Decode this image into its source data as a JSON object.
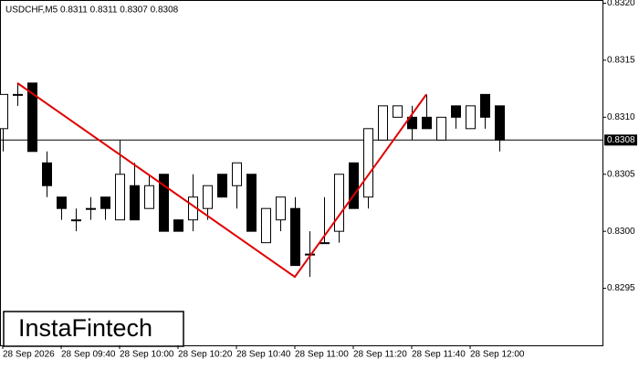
{
  "chart_data": {
    "type": "candlestick",
    "subtitle": "USDCHF,M5  0.8311 0.8311 0.8307 0.8308",
    "watermark": "InstaFintech",
    "categories": [
      "28 Sep 2026",
      null,
      null,
      null,
      "28 Sep 09:40",
      null,
      null,
      null,
      "28 Sep 10:00",
      null,
      null,
      null,
      "28 Sep 10:20",
      null,
      null,
      null,
      "28 Sep 10:40",
      null,
      null,
      null,
      "28 Sep 11:00",
      null,
      null,
      null,
      "28 Sep 11:20",
      null,
      null,
      null,
      "28 Sep 11:40",
      null,
      null,
      null,
      "28 Sep 12:00",
      null,
      null
    ],
    "open": [
      0.8309,
      0.8312,
      0.8313,
      0.8306,
      0.8303,
      0.8301,
      0.8302,
      0.8303,
      0.8301,
      0.8304,
      0.8302,
      0.8305,
      0.8301,
      0.8301,
      0.8302,
      0.8305,
      0.8304,
      0.8305,
      0.8299,
      0.8301,
      0.8302,
      0.8298,
      0.8299,
      0.83,
      0.8306,
      0.8303,
      0.8308,
      0.831,
      0.831,
      0.831,
      0.8308,
      0.8311,
      0.8309,
      0.8312,
      0.8311
    ],
    "high": [
      0.8312,
      0.8313,
      0.8313,
      0.8307,
      0.8303,
      0.8302,
      0.8303,
      0.8303,
      0.8308,
      0.8306,
      0.8305,
      0.8305,
      0.8301,
      0.8305,
      0.8304,
      0.8305,
      0.8306,
      0.8305,
      0.8302,
      0.8303,
      0.8303,
      0.83,
      0.8303,
      0.8305,
      0.8306,
      0.8309,
      0.8311,
      0.8311,
      0.8311,
      0.8312,
      0.831,
      0.8311,
      0.8311,
      0.8312,
      0.8311
    ],
    "low": [
      0.8307,
      0.8311,
      0.8307,
      0.8303,
      0.8301,
      0.83,
      0.8301,
      0.8301,
      0.8301,
      0.8301,
      0.8302,
      0.83,
      0.83,
      0.83,
      0.8301,
      0.8303,
      0.8302,
      0.83,
      0.8299,
      0.83,
      0.8297,
      0.8296,
      0.8299,
      0.8299,
      0.8302,
      0.8302,
      0.8308,
      0.831,
      0.8308,
      0.8309,
      0.8308,
      0.8309,
      0.8309,
      0.8309,
      0.8307
    ],
    "close": [
      0.8312,
      0.8312,
      0.8307,
      0.8304,
      0.8302,
      0.8301,
      0.8302,
      0.8302,
      0.8305,
      0.8301,
      0.8304,
      0.83,
      0.83,
      0.8303,
      0.8304,
      0.8303,
      0.8306,
      0.83,
      0.8302,
      0.8303,
      0.8297,
      0.8298,
      0.8299,
      0.8305,
      0.8302,
      0.8309,
      0.8311,
      0.8311,
      0.8309,
      0.8309,
      0.831,
      0.831,
      0.8311,
      0.831,
      0.8308
    ],
    "up_color": "#ffffff",
    "down_color": "#000000",
    "last_price": {
      "value": 0.8308,
      "label": "0.8308"
    },
    "pattern": {
      "color": "#e00000",
      "points": [
        1,
        20,
        29
      ],
      "values": [
        0.8313,
        0.8296,
        0.8312
      ]
    },
    "ylim": [
      0.829,
      0.83202
    ],
    "yticks": [
      0.8295,
      {
        "value": 0.83,
        "label": "0.8300"
      },
      0.8305,
      {
        "value": 0.831,
        "label": "0.8310"
      },
      0.8315,
      {
        "value": 0.832,
        "label": "0.8320"
      }
    ]
  }
}
